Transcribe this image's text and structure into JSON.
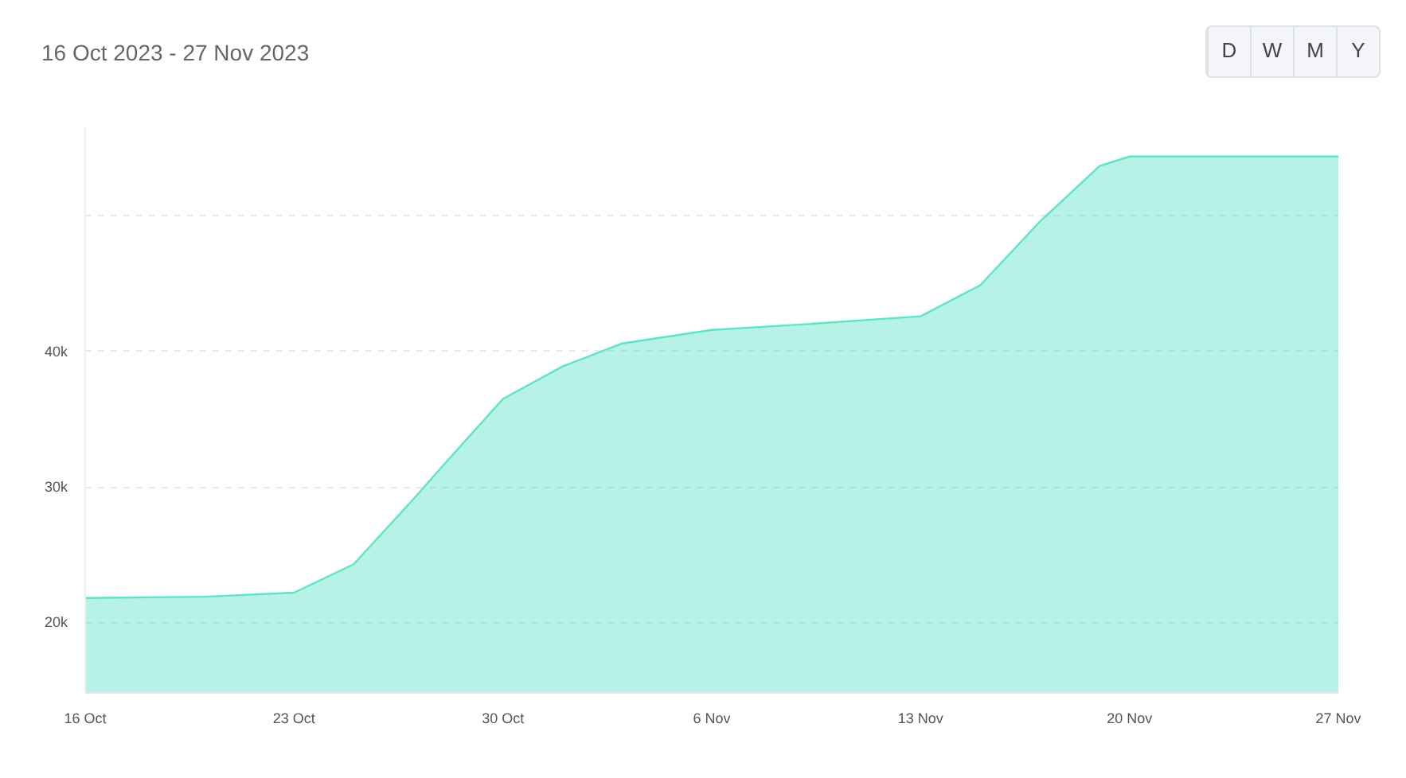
{
  "chart_data": {
    "type": "area",
    "title": "16 Oct 2023 - 27 Nov 2023",
    "annotations": [
      "D",
      "W",
      "M",
      "Y"
    ],
    "x": [
      "2023-10-16",
      "2023-10-20",
      "2023-10-23",
      "2023-10-25",
      "2023-10-27",
      "2023-10-28",
      "2023-10-30",
      "2023-11-01",
      "2023-11-03",
      "2023-11-06",
      "2023-11-09",
      "2023-11-13",
      "2023-11-15",
      "2023-11-17",
      "2023-11-19",
      "2023-11-20",
      "2023-11-27"
    ],
    "series": [
      {
        "color": "#5fe3c9",
        "values": [
          21800,
          21900,
          22200,
          24300,
          29100,
          31600,
          36500,
          38900,
          40600,
          41600,
          42000,
          42600,
          44900,
          49600,
          53700,
          54400,
          54400
        ]
      }
    ],
    "xlim": [
      "2023-10-16",
      "2023-11-27"
    ],
    "xticks": [
      {
        "value": "2023-10-16",
        "label": "16 Oct"
      },
      {
        "value": "2023-10-23",
        "label": "23 Oct"
      },
      {
        "value": "2023-10-30",
        "label": "30 Oct"
      },
      {
        "value": "2023-11-06",
        "label": "6 Nov"
      },
      {
        "value": "2023-11-13",
        "label": "13 Nov"
      },
      {
        "value": "2023-11-20",
        "label": "20 Nov"
      },
      {
        "value": "2023-11-27",
        "label": "27 Nov"
      }
    ],
    "ylim": [
      14800,
      56500
    ],
    "yticks": [
      {
        "value": 20000,
        "label": "20k"
      },
      {
        "value": 30000,
        "label": "30k"
      },
      {
        "value": 40000,
        "label": "40k"
      },
      {
        "value": 50000,
        "label": null
      }
    ],
    "grid": "y",
    "marker": "none",
    "line_style": "solid"
  }
}
